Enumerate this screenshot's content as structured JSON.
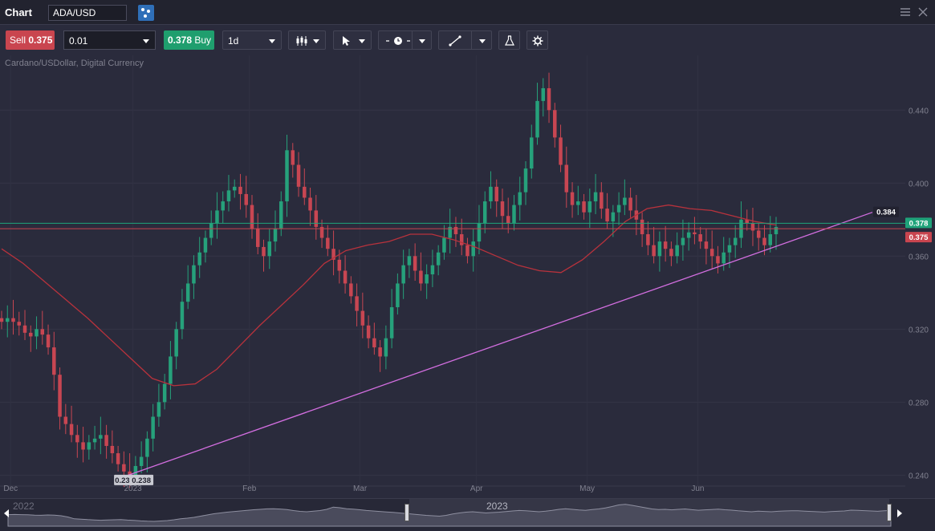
{
  "window": {
    "title": "Chart",
    "symbol": "ADA/USD",
    "menu_icon": "hamburger-icon",
    "close_icon": "close-icon",
    "link_icon": "link-channel-icon"
  },
  "toolbar": {
    "sell_label": "Sell",
    "sell_price": "0.375",
    "quantity": "0.01",
    "buy_price": "0.378",
    "buy_label": "Buy",
    "interval": "1d",
    "chart_style_icon": "candlestick-icon",
    "cursor_icon": "cursor-arrow-icon",
    "crosshair_icon": "clock-line-icon",
    "drawing_icon": "trendline-icon",
    "indicators_icon": "flask-icon",
    "settings_icon": "gear-icon"
  },
  "instrument_description": "Cardano/USDollar, Digital Currency",
  "colors": {
    "up": "#26a17b",
    "down": "#c84652",
    "moving_average": "#b8323c",
    "trendline": "#d36ee0",
    "buy_line": "#1fa37a",
    "sell_line": "#c9454f",
    "background": "#2a2b3c"
  },
  "chart_data": {
    "type": "candlestick",
    "y_ticks": [
      "0.440",
      "0.400",
      "0.360",
      "0.320",
      "0.280",
      "0.240"
    ],
    "x_ticks": [
      "Dec",
      "2023",
      "Feb",
      "Mar",
      "Apr",
      "May",
      "Jun"
    ],
    "y_range": [
      0.234,
      0.47
    ],
    "buy_price_label": "0.378",
    "sell_price_label": "0.375",
    "trendline_end_label": "0.384",
    "low_labels": [
      "0.238",
      "0.238"
    ],
    "moving_average": [
      0.364,
      0.356,
      0.346,
      0.336,
      0.326,
      0.315,
      0.304,
      0.293,
      0.289,
      0.29,
      0.298,
      0.31,
      0.322,
      0.333,
      0.344,
      0.356,
      0.363,
      0.366,
      0.368,
      0.372,
      0.372,
      0.369,
      0.365,
      0.36,
      0.355,
      0.352,
      0.351,
      0.358,
      0.368,
      0.379,
      0.386,
      0.388,
      0.386,
      0.385,
      0.382,
      0.379,
      0.377
    ],
    "closes": [
      0.324,
      0.326,
      0.324,
      0.322,
      0.318,
      0.316,
      0.32,
      0.317,
      0.31,
      0.295,
      0.272,
      0.268,
      0.262,
      0.258,
      0.254,
      0.258,
      0.26,
      0.262,
      0.256,
      0.252,
      0.246,
      0.242,
      0.24,
      0.245,
      0.25,
      0.26,
      0.272,
      0.28,
      0.29,
      0.305,
      0.32,
      0.335,
      0.345,
      0.355,
      0.362,
      0.37,
      0.378,
      0.385,
      0.39,
      0.396,
      0.398,
      0.394,
      0.388,
      0.375,
      0.365,
      0.36,
      0.368,
      0.375,
      0.39,
      0.418,
      0.41,
      0.398,
      0.392,
      0.385,
      0.376,
      0.37,
      0.364,
      0.358,
      0.352,
      0.345,
      0.338,
      0.33,
      0.322,
      0.315,
      0.31,
      0.305,
      0.315,
      0.332,
      0.345,
      0.355,
      0.36,
      0.352,
      0.345,
      0.35,
      0.355,
      0.362,
      0.37,
      0.376,
      0.372,
      0.366,
      0.36,
      0.368,
      0.378,
      0.39,
      0.398,
      0.39,
      0.382,
      0.378,
      0.388,
      0.395,
      0.408,
      0.425,
      0.445,
      0.452,
      0.44,
      0.425,
      0.41,
      0.395,
      0.388,
      0.39,
      0.384,
      0.39,
      0.395,
      0.386,
      0.379,
      0.384,
      0.388,
      0.392,
      0.385,
      0.38,
      0.372,
      0.366,
      0.36,
      0.368,
      0.364,
      0.36,
      0.366,
      0.37,
      0.373,
      0.372,
      0.368,
      0.364,
      0.36,
      0.356,
      0.362,
      0.366,
      0.37,
      0.38,
      0.378,
      0.374,
      0.37,
      0.366,
      0.372,
      0.376
    ]
  },
  "navigator": {
    "left_year": "2022",
    "right_year": "2023"
  }
}
